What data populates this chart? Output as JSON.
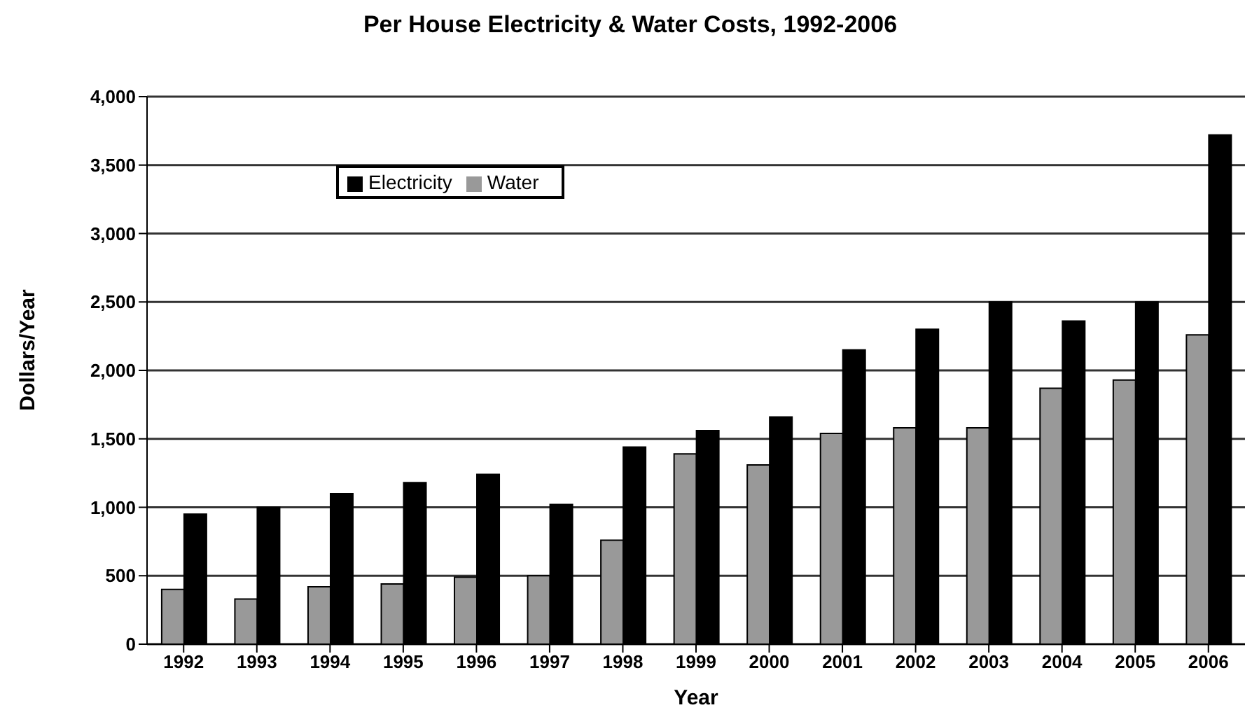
{
  "chart_data": {
    "type": "bar",
    "title": "Per House Electricity & Water Costs, 1992-2006",
    "xlabel": "Year",
    "ylabel": "Dollars/Year",
    "categories": [
      "1992",
      "1993",
      "1994",
      "1995",
      "1996",
      "1997",
      "1998",
      "1999",
      "2000",
      "2001",
      "2002",
      "2003",
      "2004",
      "2005",
      "2006"
    ],
    "series": [
      {
        "name": "Water",
        "color": "#999999",
        "values": [
          400,
          330,
          420,
          440,
          490,
          500,
          760,
          1390,
          1310,
          1540,
          1580,
          1580,
          1870,
          1930,
          2260
        ]
      },
      {
        "name": "Electricity",
        "color": "#000000",
        "values": [
          950,
          1000,
          1100,
          1180,
          1240,
          1020,
          1440,
          1560,
          1660,
          2150,
          2300,
          2500,
          2360,
          2500,
          3720
        ]
      }
    ],
    "ylim": [
      0,
      4000
    ],
    "yticks": [
      {
        "value": 0,
        "label": "0"
      },
      {
        "value": 500,
        "label": "500"
      },
      {
        "value": 1000,
        "label": "1,000"
      },
      {
        "value": 1500,
        "label": "1,500"
      },
      {
        "value": 2000,
        "label": "2,000"
      },
      {
        "value": 2500,
        "label": "2,500"
      },
      {
        "value": 3000,
        "label": "3,000"
      },
      {
        "value": 3500,
        "label": "3,500"
      },
      {
        "value": 4000,
        "label": "4,000"
      }
    ],
    "grid": "y",
    "legend": "top left"
  }
}
